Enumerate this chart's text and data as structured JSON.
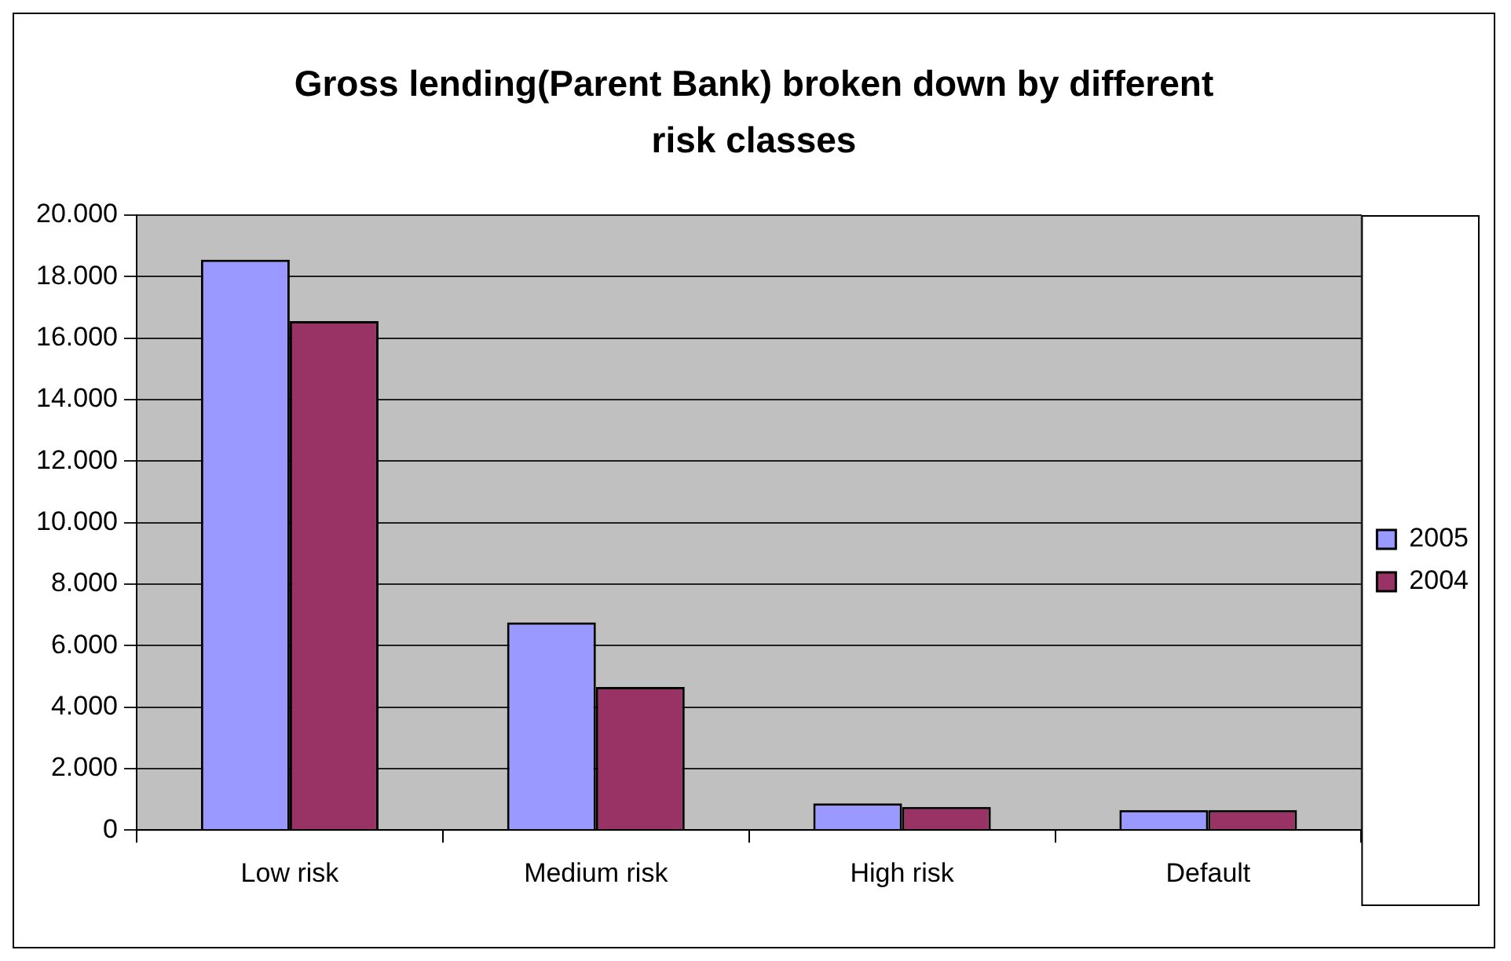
{
  "chart_data": {
    "type": "bar",
    "title": "Gross lending(Parent Bank) broken down by different risk classes",
    "categories": [
      "Low risk",
      "Medium risk",
      "High risk",
      "Default"
    ],
    "series": [
      {
        "name": "2005",
        "color": "#9999ff",
        "values": [
          18550,
          6750,
          870,
          650
        ]
      },
      {
        "name": "2004",
        "color": "#993366",
        "values": [
          16550,
          4650,
          750,
          650
        ]
      }
    ],
    "ylim": [
      0,
      20000
    ],
    "yticks": [
      {
        "value": 0,
        "label": "0"
      },
      {
        "value": 2000,
        "label": "2.000"
      },
      {
        "value": 4000,
        "label": "4.000"
      },
      {
        "value": 6000,
        "label": "6.000"
      },
      {
        "value": 8000,
        "label": "8.000"
      },
      {
        "value": 10000,
        "label": "10.000"
      },
      {
        "value": 12000,
        "label": "12.000"
      },
      {
        "value": 14000,
        "label": "14.000"
      },
      {
        "value": 16000,
        "label": "16.000"
      },
      {
        "value": 18000,
        "label": "18.000"
      },
      {
        "value": 20000,
        "label": "20.000"
      }
    ],
    "grid": "y",
    "legend": "right"
  }
}
